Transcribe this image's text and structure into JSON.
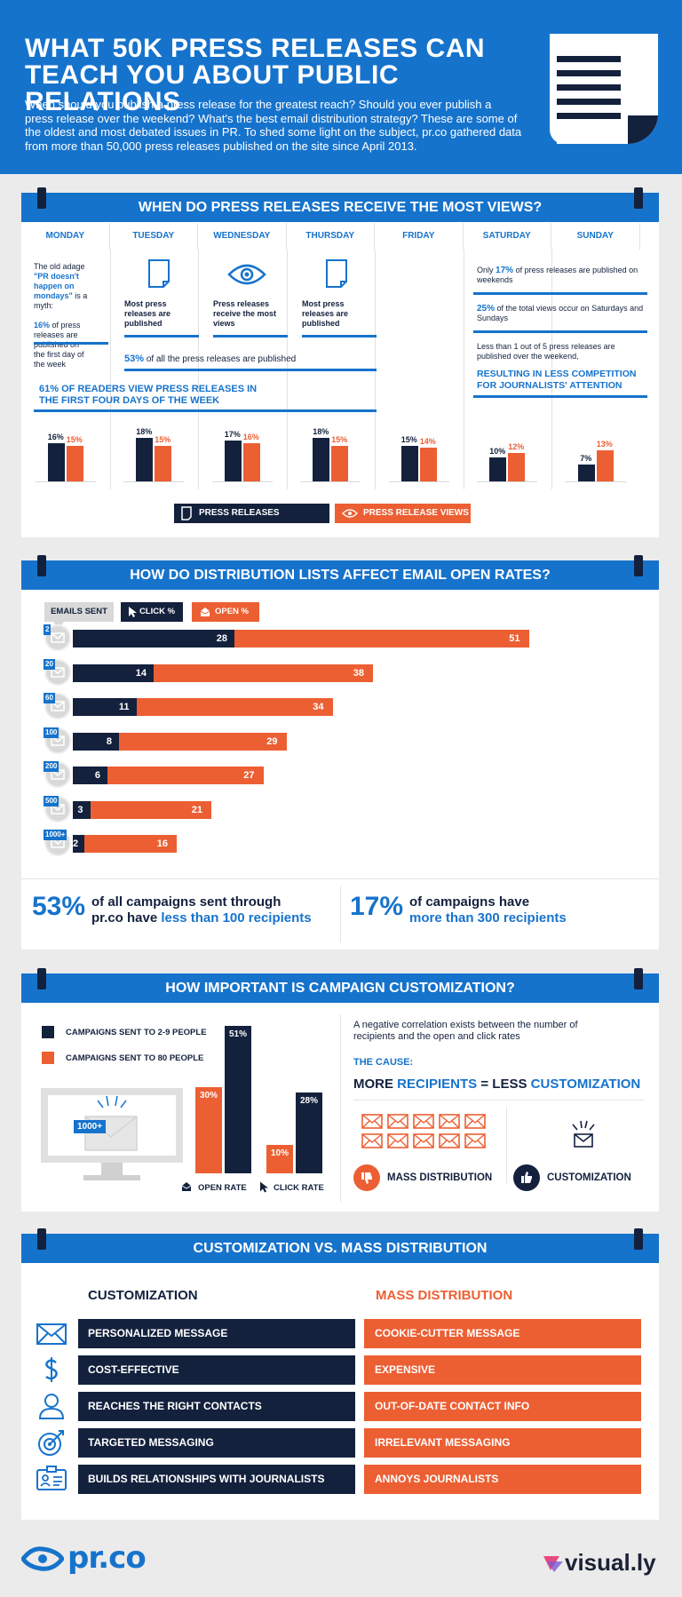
{
  "header": {
    "title_line1": "WHAT 50K PRESS RELEASES CAN",
    "title_line2": "TEACH YOU ABOUT PUBLIC RELATIONS",
    "intro": "When should you publish a press release for the greatest reach? Should you ever publish a press release over the weekend? What's the best email distribution strategy? These are some of the oldest and most debated issues in PR. To shed some light on the subject, pr.co gathered data from more than 50,000 press releases published on the site since April 2013."
  },
  "section1": {
    "title": "WHEN DO PRESS RELEASES RECEIVE THE MOST VIEWS?",
    "monday_note_1": "The old adage",
    "monday_note_quote": "\"PR doesn't happen on mondays\"",
    "monday_note_2": "is a myth:",
    "monday_pct": "16%",
    "monday_note_3": "of press releases are published on the first day of the week",
    "tuesday_note": "Most press releases are published",
    "wednesday_note": "Press releases receive the most views",
    "thursday_note": "Most press releases are published",
    "pct53": "53%",
    "pct53_text": "of all the press releases are published",
    "readers_61": "61% OF READERS VIEW PRESS RELEASES IN THE FIRST FOUR DAYS OF THE WEEK",
    "weekend_1_pre": "Only",
    "weekend_1_pct": "17%",
    "weekend_1_post": "of press releases are published on weekends",
    "weekend_2_pct": "25%",
    "weekend_2_post": "of the total views occur on Saturdays and Sundays",
    "weekend_3": "Less than 1 out of 5 press releases are published over the weekend,",
    "weekend_4": "RESULTING IN LESS COMPETITION FOR JOURNALISTS' ATTENTION",
    "legend_published": "PRESS RELEASES PUBLISHED",
    "legend_views": "PRESS RELEASE VIEWS"
  },
  "section2": {
    "title": "HOW DO DISTRIBUTION LISTS AFFECT EMAIL OPEN RATES?",
    "legend_sent": "EMAILS SENT",
    "legend_click": "CLICK %",
    "legend_open": "OPEN %",
    "stat1_pct": "53%",
    "stat1_line1": "of all campaigns sent through",
    "stat1_line2a": "pr.co have ",
    "stat1_line2b": "less than 100 recipients",
    "stat2_pct": "17%",
    "stat2_line1": "of campaigns have",
    "stat2_line2": "more than 300 recipients"
  },
  "section3": {
    "title": "HOW IMPORTANT IS CAMPAIGN CUSTOMIZATION?",
    "legend_a": "CAMPAIGNS SENT TO 2-9 PEOPLE",
    "legend_b": "CAMPAIGNS SENT TO 80 PEOPLE",
    "badge": "1000+",
    "xlabel_open": "OPEN RATE",
    "xlabel_click": "CLICK RATE",
    "neg_corr": "A negative correlation exists between the number of recipients and the open and click rates",
    "cause": "THE CAUSE:",
    "eq_more": "MORE ",
    "eq_recipients": "RECIPIENTS",
    "eq_equals": " = ",
    "eq_less": "LESS ",
    "eq_custom": "CUSTOMIZATION",
    "mass_label": "MASS DISTRIBUTION",
    "custom_label": "CUSTOMIZATION"
  },
  "section4": {
    "title": "CUSTOMIZATION VS. MASS DISTRIBUTION",
    "left_head": "CUSTOMIZATION",
    "right_head": "MASS DISTRIBUTION",
    "rows": [
      {
        "icon": "envelope-icon",
        "left": "PERSONALIZED MESSAGE",
        "right": "COOKIE-CUTTER MESSAGE"
      },
      {
        "icon": "dollar-icon",
        "left": "COST-EFFECTIVE",
        "right": "EXPENSIVE"
      },
      {
        "icon": "person-icon",
        "left": "REACHES THE RIGHT CONTACTS",
        "right": "OUT-OF-DATE CONTACT INFO"
      },
      {
        "icon": "target-icon",
        "left": "TARGETED MESSAGING",
        "right": "IRRELEVANT MESSAGING"
      },
      {
        "icon": "id-card-icon",
        "left": "BUILDS RELATIONSHIPS WITH JOURNALISTS",
        "right": "ANNOYS JOURNALISTS"
      }
    ]
  },
  "footer": {
    "left_logo": "pr.co",
    "right_logo": "visual.ly"
  },
  "colors": {
    "blue": "#1673cc",
    "navy": "#13213d",
    "orange": "#ec5f33"
  },
  "chart_data": [
    {
      "type": "bar",
      "title": "WHEN DO PRESS RELEASES RECEIVE THE MOST VIEWS?",
      "categories": [
        "MONDAY",
        "TUESDAY",
        "WEDNESDAY",
        "THURSDAY",
        "FRIDAY",
        "SATURDAY",
        "SUNDAY"
      ],
      "series": [
        {
          "name": "PRESS RELEASES PUBLISHED",
          "values": [
            16,
            18,
            17,
            18,
            15,
            10,
            7
          ]
        },
        {
          "name": "PRESS RELEASE VIEWS",
          "values": [
            15,
            15,
            16,
            15,
            14,
            12,
            13
          ]
        }
      ],
      "unit": "%"
    },
    {
      "type": "bar",
      "orientation": "horizontal",
      "title": "HOW DO DISTRIBUTION LISTS AFFECT EMAIL OPEN RATES?",
      "categories": [
        "2",
        "20",
        "60",
        "100",
        "200",
        "500",
        "1000+"
      ],
      "series": [
        {
          "name": "CLICK %",
          "values": [
            28,
            14,
            11,
            8,
            6,
            3,
            2
          ]
        },
        {
          "name": "OPEN %",
          "values": [
            51,
            38,
            34,
            29,
            27,
            21,
            16
          ]
        }
      ],
      "stacked": true
    },
    {
      "type": "bar",
      "title": "HOW IMPORTANT IS CAMPAIGN CUSTOMIZATION?",
      "categories": [
        "OPEN RATE",
        "CLICK RATE"
      ],
      "series": [
        {
          "name": "CAMPAIGNS SENT TO 80 PEOPLE",
          "values": [
            30,
            10
          ]
        },
        {
          "name": "CAMPAIGNS SENT TO 2-9 PEOPLE",
          "values": [
            51,
            28
          ]
        }
      ],
      "unit": "%"
    }
  ]
}
